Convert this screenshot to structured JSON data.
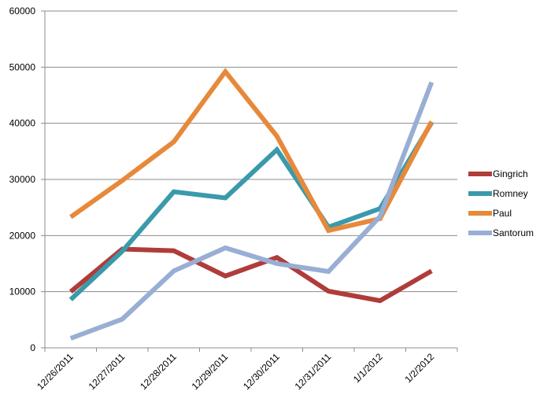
{
  "chart_data": {
    "type": "line",
    "title": "",
    "xlabel": "",
    "ylabel": "",
    "categories": [
      "12/26/2011",
      "12/27/2011",
      "12/28/2011",
      "12/29/2011",
      "12/30/2011",
      "12/31/2011",
      "1/1/2012",
      "1/2/2012"
    ],
    "ylim": [
      0,
      60000
    ],
    "yticks": [
      "0",
      "10000",
      "20000",
      "30000",
      "40000",
      "50000",
      "60000"
    ],
    "grid": "horizontal",
    "legend_position": "right",
    "series": [
      {
        "name": "Gingrich",
        "color": "#B03C3A",
        "values": [
          10000,
          17600,
          17300,
          12800,
          16100,
          10100,
          8400,
          13700
        ]
      },
      {
        "name": "Romney",
        "color": "#3A9AAB",
        "values": [
          8600,
          17200,
          27800,
          26700,
          35300,
          21500,
          24800,
          40100
        ]
      },
      {
        "name": "Paul",
        "color": "#E7893A",
        "values": [
          23300,
          29800,
          36700,
          49200,
          37700,
          20900,
          23000,
          40300
        ]
      },
      {
        "name": "Santorum",
        "color": "#98AED4",
        "values": [
          1700,
          5100,
          13700,
          17800,
          15000,
          13600,
          23400,
          47300
        ]
      }
    ]
  }
}
